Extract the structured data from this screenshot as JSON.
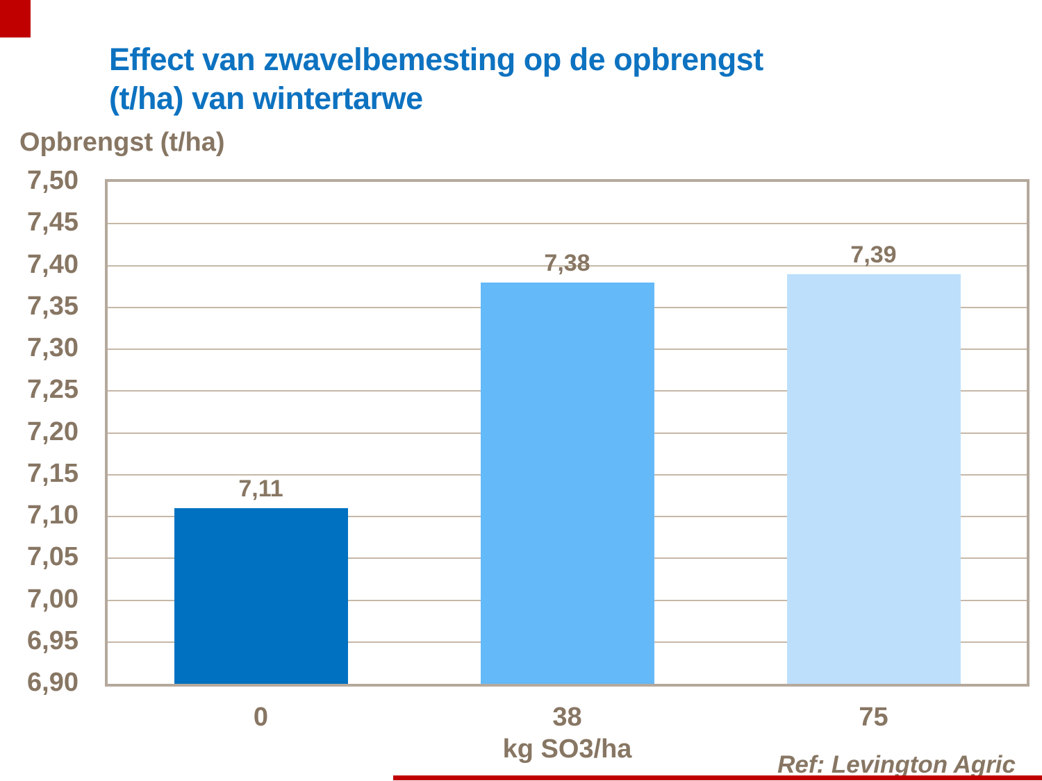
{
  "slide": {
    "title_lines": [
      "Effect van zwavelbemesting op de opbrengst",
      "(t/ha) van wintertarwe"
    ],
    "title_color": "#0d72c0",
    "ref_note": "Ref: Levington  Agric",
    "accent_color": "#c00000",
    "text_color": "#877663"
  },
  "chart_data": {
    "type": "bar",
    "title": "Effect van zwavelbemesting op de opbrengst (t/ha) van wintertarwe",
    "ylabel": "Opbrengst (t/ha)",
    "xlabel": "kg SO3/ha",
    "categories": [
      "0",
      "38",
      "75"
    ],
    "values": [
      7.11,
      7.38,
      7.39
    ],
    "value_labels": [
      "7,11",
      "7,38",
      "7,39"
    ],
    "bar_colors": [
      "#0071c1",
      "#64b9f8",
      "#bddffb"
    ],
    "ylim": [
      6.9,
      7.5
    ],
    "ytick_step": 0.05,
    "ytick_labels": [
      "7,50",
      "7,45",
      "7,40",
      "7,35",
      "7,30",
      "7,25",
      "7,20",
      "7,15",
      "7,10",
      "7,05",
      "7,00",
      "6,95",
      "6,90"
    ],
    "grid": true,
    "legend_position": "none",
    "grid_color": "#c6b8a7",
    "border_color": "#b5a99c",
    "text_color": "#877663"
  }
}
